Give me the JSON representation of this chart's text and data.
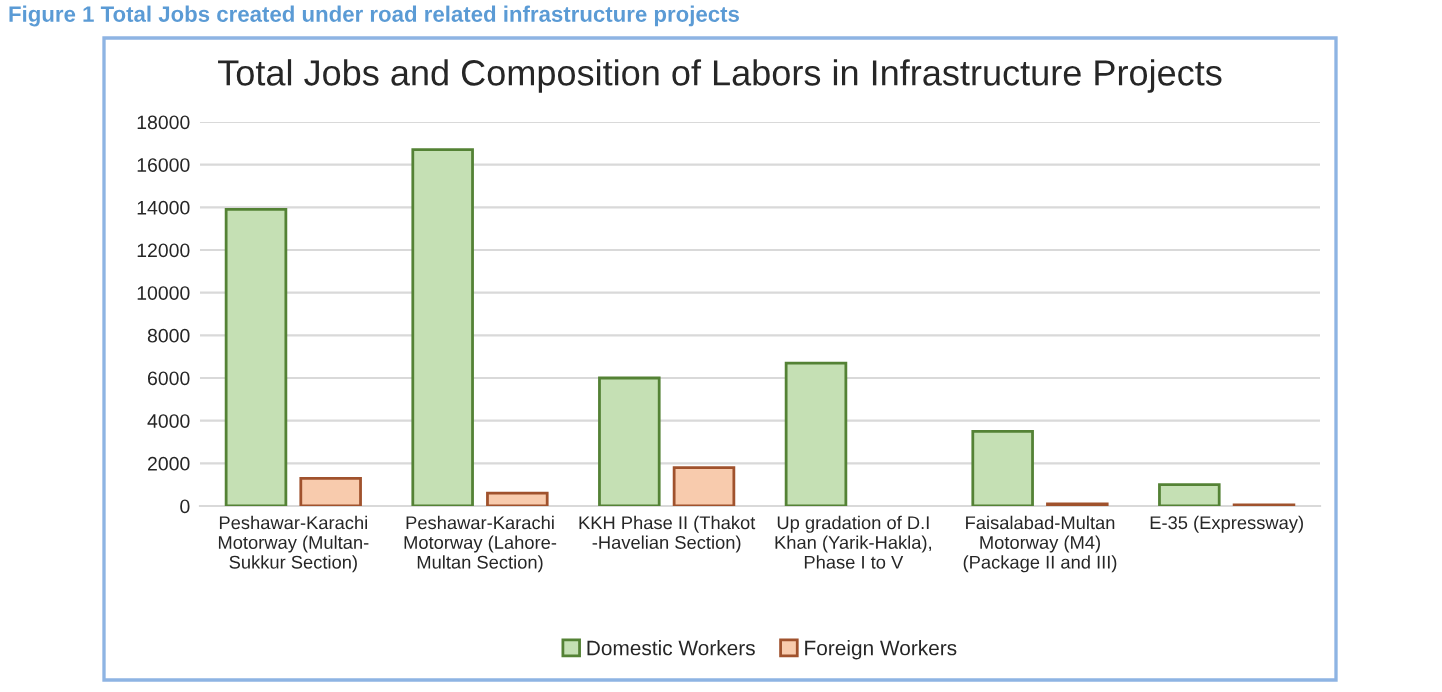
{
  "chart_data": {
    "type": "bar",
    "title": "Total Jobs and Composition of Labors in Infrastructure Projects",
    "annotations": [
      "Figure 1 Total Jobs created under road related infrastructure projects"
    ],
    "categories": [
      "Peshawar-Karachi\nMotorway (Multan-\nSukkur Section)",
      "Peshawar-Karachi\nMotorway (Lahore-\nMultan Section)",
      "KKH Phase II (Thakot\n-Havelian Section)",
      "Up gradation of D.I\nKhan (Yarik-Hakla),\nPhase I to V",
      "Faisalabad-Multan\nMotorway (M4)\n(Package II and III)",
      "E-35 (Expressway)"
    ],
    "series": [
      {
        "name": "Domestic Workers",
        "color": "#c5e0b4",
        "values": [
          13900,
          16700,
          6000,
          6700,
          3500,
          1000
        ]
      },
      {
        "name": "Foreign Workers",
        "color": "#f8cbad",
        "values": [
          1300,
          600,
          1800,
          null,
          100,
          50
        ]
      }
    ],
    "ylim": [
      0,
      18000
    ],
    "yticks": [
      0,
      2000,
      4000,
      6000,
      8000,
      10000,
      12000,
      14000,
      16000,
      18000
    ],
    "grid": "y",
    "legend": "bottom"
  }
}
